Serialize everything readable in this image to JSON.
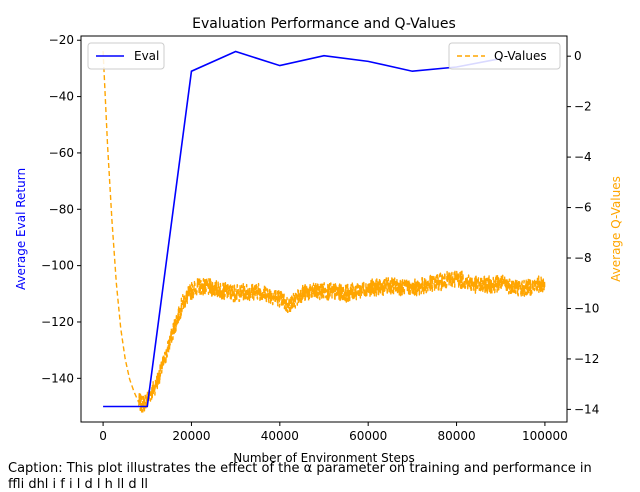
{
  "caption": {
    "line1": "Caption: This plot illustrates the effect of the α parameter on training and performance in",
    "line2": "ffli                         dhl              i                         f i l                d   l  h  ll  d  ll"
  },
  "colors": {
    "eval": "#0000ff",
    "qvalues": "#ffa500",
    "axis": "#000000"
  },
  "chart_data": {
    "type": "line",
    "title": "Evaluation Performance and Q-Values",
    "xlabel": "Number of Environment Steps",
    "ylabel_left": "Average Eval Return",
    "ylabel_right": "Average Q-Values",
    "xlim": [
      -5000,
      105000
    ],
    "ylim_left": [
      -155.5,
      -18.5
    ],
    "ylim_right": [
      -14.5,
      0.8
    ],
    "x_ticks": [
      0,
      20000,
      40000,
      60000,
      80000,
      100000
    ],
    "x_tick_labels": [
      "0",
      "20000",
      "40000",
      "60000",
      "80000",
      "100000"
    ],
    "y_left_ticks": [
      -20,
      -40,
      -60,
      -80,
      -100,
      -120,
      -140
    ],
    "y_left_tick_labels": [
      "−20",
      "−40",
      "−60",
      "−80",
      "−100",
      "−120",
      "−140"
    ],
    "y_right_ticks": [
      0,
      -2,
      -4,
      -6,
      -8,
      -10,
      -12,
      -14
    ],
    "y_right_tick_labels": [
      "0",
      "−2",
      "−4",
      "−6",
      "−8",
      "−10",
      "−12",
      "−14"
    ],
    "grid": false,
    "legend_left": {
      "placement": "top-left",
      "label": "Eval"
    },
    "legend_right": {
      "placement": "top-right",
      "label": "Q-Values"
    },
    "series": [
      {
        "name": "Eval",
        "axis": "left",
        "style": "solid",
        "x": [
          0,
          10000,
          20000,
          30000,
          40000,
          50000,
          60000,
          70000,
          80000,
          90000
        ],
        "y": [
          -150,
          -150,
          -31,
          -24,
          -29,
          -25.5,
          -27.5,
          -31,
          -29.5,
          -26.5
        ]
      },
      {
        "name": "Q-Values",
        "axis": "right",
        "style": "dashed",
        "x": [
          0,
          1000,
          2000,
          3000,
          4000,
          5000,
          6000,
          7000,
          8000,
          9000,
          10000,
          12000,
          14000,
          16000,
          18000,
          20000,
          22000,
          25000,
          30000,
          35000,
          40000,
          42000,
          45000,
          50000,
          55000,
          60000,
          65000,
          70000,
          75000,
          80000,
          85000,
          90000,
          95000,
          100000
        ],
        "y": [
          0.2,
          -3.5,
          -6.5,
          -9.0,
          -10.8,
          -12.0,
          -12.8,
          -13.3,
          -13.7,
          -13.8,
          -13.6,
          -13.0,
          -12.0,
          -10.8,
          -9.8,
          -9.3,
          -9.1,
          -9.2,
          -9.4,
          -9.3,
          -9.6,
          -9.9,
          -9.4,
          -9.3,
          -9.4,
          -9.2,
          -9.1,
          -9.2,
          -9.0,
          -8.8,
          -9.1,
          -9.0,
          -9.2,
          -9.0
        ],
        "noise_amplitude": 0.35
      }
    ]
  }
}
